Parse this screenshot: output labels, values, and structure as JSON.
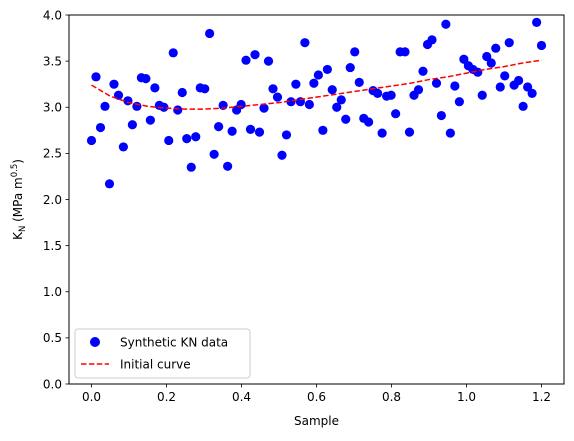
{
  "chart_data": {
    "type": "scatter",
    "title": "",
    "xlabel": "Sample",
    "ylabel_main": "K",
    "ylabel_sub": "N",
    "ylabel_units_open": " (MPa m",
    "ylabel_units_sup": "0.5",
    "ylabel_units_close": ")",
    "xlim": [
      -0.06,
      1.26
    ],
    "ylim": [
      0.0,
      4.0
    ],
    "xticks": [
      {
        "value": 0.0,
        "label": "0.0"
      },
      {
        "value": 0.2,
        "label": "0.2"
      },
      {
        "value": 0.4,
        "label": "0.4"
      },
      {
        "value": 0.6,
        "label": "0.6"
      },
      {
        "value": 0.8,
        "label": "0.8"
      },
      {
        "value": 1.0,
        "label": "1.0"
      },
      {
        "value": 1.2,
        "label": "1.2"
      }
    ],
    "yticks": [
      {
        "value": 0.0,
        "label": "0.0"
      },
      {
        "value": 0.5,
        "label": "0.5"
      },
      {
        "value": 1.0,
        "label": "1.0"
      },
      {
        "value": 1.5,
        "label": "1.5"
      },
      {
        "value": 2.0,
        "label": "2.0"
      },
      {
        "value": 2.5,
        "label": "2.5"
      },
      {
        "value": 3.0,
        "label": "3.0"
      },
      {
        "value": 3.5,
        "label": "3.5"
      },
      {
        "value": 4.0,
        "label": "4.0"
      }
    ],
    "grid": false,
    "legend_position": "lower-left",
    "series": [
      {
        "name": "Synthetic KN data",
        "kind": "scatter",
        "color": "#0000ff",
        "points": [
          [
            0.0,
            2.64
          ],
          [
            0.012,
            3.33
          ],
          [
            0.024,
            2.78
          ],
          [
            0.036,
            3.01
          ],
          [
            0.048,
            2.17
          ],
          [
            0.06,
            3.25
          ],
          [
            0.072,
            3.13
          ],
          [
            0.085,
            2.57
          ],
          [
            0.097,
            3.07
          ],
          [
            0.109,
            2.81
          ],
          [
            0.121,
            3.01
          ],
          [
            0.133,
            3.32
          ],
          [
            0.145,
            3.31
          ],
          [
            0.157,
            2.86
          ],
          [
            0.169,
            3.21
          ],
          [
            0.181,
            3.02
          ],
          [
            0.193,
            3.0
          ],
          [
            0.206,
            2.64
          ],
          [
            0.218,
            3.59
          ],
          [
            0.23,
            2.97
          ],
          [
            0.242,
            3.16
          ],
          [
            0.254,
            2.66
          ],
          [
            0.266,
            2.35
          ],
          [
            0.278,
            2.68
          ],
          [
            0.29,
            3.21
          ],
          [
            0.302,
            3.2
          ],
          [
            0.315,
            3.8
          ],
          [
            0.327,
            2.49
          ],
          [
            0.339,
            2.79
          ],
          [
            0.351,
            3.02
          ],
          [
            0.363,
            2.36
          ],
          [
            0.375,
            2.74
          ],
          [
            0.387,
            2.97
          ],
          [
            0.399,
            3.03
          ],
          [
            0.412,
            3.51
          ],
          [
            0.424,
            2.76
          ],
          [
            0.436,
            3.57
          ],
          [
            0.448,
            2.73
          ],
          [
            0.46,
            2.99
          ],
          [
            0.472,
            3.5
          ],
          [
            0.484,
            3.2
          ],
          [
            0.496,
            3.11
          ],
          [
            0.508,
            2.48
          ],
          [
            0.52,
            2.7
          ],
          [
            0.532,
            3.06
          ],
          [
            0.545,
            3.25
          ],
          [
            0.557,
            3.06
          ],
          [
            0.569,
            3.7
          ],
          [
            0.581,
            3.03
          ],
          [
            0.593,
            3.26
          ],
          [
            0.605,
            3.35
          ],
          [
            0.617,
            2.75
          ],
          [
            0.629,
            3.41
          ],
          [
            0.642,
            3.19
          ],
          [
            0.654,
            3.0
          ],
          [
            0.666,
            3.08
          ],
          [
            0.678,
            2.87
          ],
          [
            0.69,
            3.43
          ],
          [
            0.702,
            3.6
          ],
          [
            0.714,
            3.27
          ],
          [
            0.726,
            2.88
          ],
          [
            0.739,
            2.84
          ],
          [
            0.751,
            3.18
          ],
          [
            0.763,
            3.15
          ],
          [
            0.775,
            2.72
          ],
          [
            0.787,
            3.12
          ],
          [
            0.799,
            3.13
          ],
          [
            0.811,
            2.93
          ],
          [
            0.823,
            3.6
          ],
          [
            0.836,
            3.6
          ],
          [
            0.848,
            2.73
          ],
          [
            0.86,
            3.13
          ],
          [
            0.872,
            3.19
          ],
          [
            0.884,
            3.39
          ],
          [
            0.896,
            3.68
          ],
          [
            0.908,
            3.73
          ],
          [
            0.92,
            3.26
          ],
          [
            0.933,
            2.91
          ],
          [
            0.945,
            3.9
          ],
          [
            0.957,
            2.72
          ],
          [
            0.969,
            3.23
          ],
          [
            0.981,
            3.06
          ],
          [
            0.993,
            3.52
          ],
          [
            1.005,
            3.45
          ],
          [
            1.017,
            3.41
          ],
          [
            1.03,
            3.38
          ],
          [
            1.042,
            3.13
          ],
          [
            1.054,
            3.55
          ],
          [
            1.066,
            3.48
          ],
          [
            1.078,
            3.64
          ],
          [
            1.09,
            3.22
          ],
          [
            1.102,
            3.34
          ],
          [
            1.114,
            3.7
          ],
          [
            1.127,
            3.24
          ],
          [
            1.139,
            3.29
          ],
          [
            1.151,
            3.01
          ],
          [
            1.163,
            3.22
          ],
          [
            1.175,
            3.15
          ],
          [
            1.187,
            3.92
          ],
          [
            1.2,
            3.67
          ]
        ]
      },
      {
        "name": "Initial curve",
        "kind": "line",
        "color": "#ff0000",
        "dash": "dashed",
        "points": [
          [
            0.0,
            3.24
          ],
          [
            0.05,
            3.12
          ],
          [
            0.1,
            3.05
          ],
          [
            0.15,
            3.01
          ],
          [
            0.2,
            2.99
          ],
          [
            0.25,
            2.98
          ],
          [
            0.3,
            2.98
          ],
          [
            0.35,
            2.99
          ],
          [
            0.4,
            3.01
          ],
          [
            0.45,
            3.03
          ],
          [
            0.5,
            3.05
          ],
          [
            0.55,
            3.08
          ],
          [
            0.6,
            3.11
          ],
          [
            0.65,
            3.14
          ],
          [
            0.7,
            3.17
          ],
          [
            0.75,
            3.2
          ],
          [
            0.8,
            3.23
          ],
          [
            0.85,
            3.26
          ],
          [
            0.9,
            3.3
          ],
          [
            0.95,
            3.33
          ],
          [
            1.0,
            3.37
          ],
          [
            1.05,
            3.41
          ],
          [
            1.1,
            3.44
          ],
          [
            1.15,
            3.48
          ],
          [
            1.2,
            3.51
          ]
        ]
      }
    ]
  }
}
